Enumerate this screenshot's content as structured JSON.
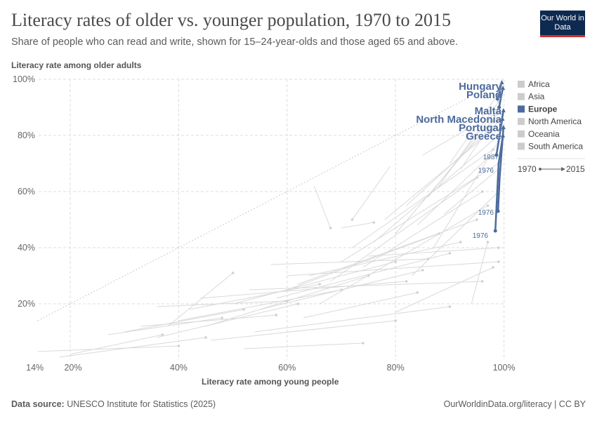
{
  "header": {
    "title": "Literacy rates of older vs. younger population, 1970 to 2015",
    "subtitle": "Share of people who can read and write, shown for 15–24-year-olds and those aged 65 and above.",
    "logo": "Our World in Data"
  },
  "footer": {
    "source_label": "Data source:",
    "source": "UNESCO Institute for Statistics (2025)",
    "credit": "OurWorldinData.org/literacy | CC BY"
  },
  "chart_data": {
    "type": "scatter",
    "xlabel": "Literacy rate among young people",
    "ylabel": "Literacy rate among older adults",
    "xlim": [
      14,
      100
    ],
    "ylim": [
      0,
      100
    ],
    "xticks": [
      "14%",
      "20%",
      "40%",
      "60%",
      "80%",
      "100%"
    ],
    "xtick_values": [
      14,
      20,
      40,
      60,
      80,
      100
    ],
    "yticks": [
      "20%",
      "40%",
      "60%",
      "80%",
      "100%"
    ],
    "ytick_values": [
      20,
      40,
      60,
      80,
      100
    ],
    "grid": true,
    "reference_line": "y = x (dotted)",
    "legend": {
      "placement": "right",
      "items": [
        "Africa",
        "Asia",
        "Europe",
        "North America",
        "Oceania",
        "South America"
      ],
      "highlighted": "Europe",
      "time": {
        "start": "1970",
        "end": "2015"
      }
    },
    "colors": {
      "highlight": "#4c6a9c",
      "muted": "#d6d6d6"
    },
    "europe_series": [
      {
        "name": "Hungary",
        "points": [
          [
            98.8,
            93
          ],
          [
            99.6,
            99
          ]
        ]
      },
      {
        "name": "Poland",
        "points": [
          [
            99.1,
            90
          ],
          [
            99.8,
            97
          ]
        ]
      },
      {
        "name": "Malta",
        "points": [
          [
            99.3,
            82
          ],
          [
            99.9,
            89
          ]
        ]
      },
      {
        "name": "North Macedonia",
        "points": [
          [
            98.6,
            73
          ],
          [
            99.7,
            86
          ]
        ]
      },
      {
        "name": "Portugal",
        "points": [
          [
            98.9,
            53
          ],
          [
            99.2,
            65
          ],
          [
            99.9,
            83
          ]
        ]
      },
      {
        "name": "Greece",
        "points": [
          [
            98.4,
            46
          ],
          [
            99.0,
            70
          ],
          [
            99.8,
            80
          ]
        ]
      }
    ],
    "annotations": [
      {
        "text": "1987",
        "x": 99.2,
        "y": 72
      },
      {
        "text": "1976",
        "x": 98.5,
        "y": 65
      },
      {
        "text": "1976",
        "x": 99.3,
        "y": 52
      },
      {
        "text": "1976",
        "x": 98.4,
        "y": 44
      }
    ],
    "other_series": [
      [
        14,
        3,
        40,
        5
      ],
      [
        20,
        2,
        37,
        9
      ],
      [
        18,
        1,
        45,
        8
      ],
      [
        30,
        10,
        52,
        18
      ],
      [
        33,
        12,
        58,
        16
      ],
      [
        36,
        8,
        62,
        20
      ],
      [
        40,
        14,
        70,
        25
      ],
      [
        42,
        18,
        66,
        27
      ],
      [
        45,
        12,
        75,
        30
      ],
      [
        50,
        20,
        80,
        35
      ],
      [
        52,
        4,
        74,
        6
      ],
      [
        55,
        18,
        85,
        32
      ],
      [
        58,
        22,
        90,
        38
      ],
      [
        60,
        25,
        88,
        45
      ],
      [
        62,
        27,
        95,
        50
      ],
      [
        64,
        30,
        92,
        42
      ],
      [
        66,
        20,
        97,
        55
      ],
      [
        68,
        28,
        95,
        65
      ],
      [
        70,
        35,
        99,
        70
      ],
      [
        72,
        40,
        98,
        75
      ],
      [
        74,
        33,
        96,
        60
      ],
      [
        76,
        42,
        99,
        80
      ],
      [
        78,
        50,
        98,
        82
      ],
      [
        80,
        45,
        99,
        88
      ],
      [
        82,
        55,
        99,
        85
      ],
      [
        84,
        48,
        97,
        72
      ],
      [
        86,
        58,
        99,
        90
      ],
      [
        88,
        62,
        99,
        92
      ],
      [
        90,
        70,
        99,
        95
      ],
      [
        92,
        68,
        98,
        85
      ],
      [
        36,
        19,
        60,
        21
      ],
      [
        38,
        12,
        50,
        31
      ],
      [
        27,
        9,
        48,
        15
      ],
      [
        44,
        22,
        82,
        28
      ],
      [
        57,
        34,
        86,
        36
      ],
      [
        63,
        15,
        84,
        24
      ],
      [
        70,
        47,
        76,
        49
      ],
      [
        79,
        69,
        72,
        50
      ],
      [
        85,
        73,
        93,
        82
      ],
      [
        65,
        62,
        68,
        47
      ],
      [
        46,
        7,
        80,
        14
      ],
      [
        54,
        10,
        90,
        19
      ],
      [
        60,
        30,
        99,
        35
      ],
      [
        75,
        37,
        99,
        40
      ],
      [
        80,
        17,
        98,
        33
      ],
      [
        83,
        30,
        99,
        60
      ],
      [
        87,
        40,
        99,
        78
      ],
      [
        89,
        52,
        99,
        68
      ],
      [
        94,
        20,
        97,
        42
      ],
      [
        53,
        25,
        96,
        28
      ]
    ]
  }
}
